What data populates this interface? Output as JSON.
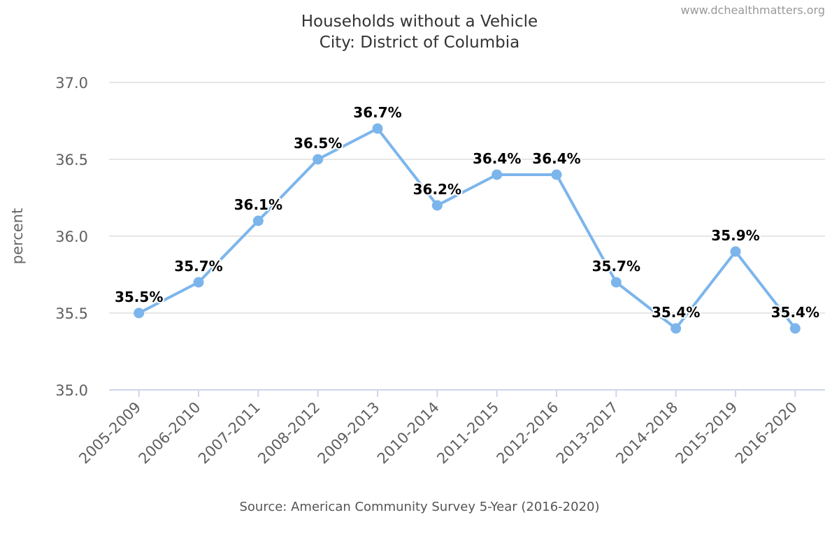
{
  "header": {
    "title": "Households without a Vehicle",
    "subtitle": "City: District of Columbia",
    "credit": "www.dchealthmatters.org"
  },
  "footer": {
    "source": "Source: American Community Survey 5-Year (2016-2020)"
  },
  "colors": {
    "series": "#7cb5ec"
  },
  "chart_data": {
    "type": "line",
    "title": "Households without a Vehicle",
    "subtitle": "City: District of Columbia",
    "xlabel": "",
    "ylabel": "percent",
    "ylim": [
      35.0,
      37.0
    ],
    "yticks": [
      "35.0",
      "35.5",
      "36.0",
      "36.5",
      "37.0"
    ],
    "grid": true,
    "legend": "none",
    "categories": [
      "2005-2009",
      "2006-2010",
      "2007-2011",
      "2008-2012",
      "2009-2013",
      "2010-2014",
      "2011-2015",
      "2012-2016",
      "2013-2017",
      "2014-2018",
      "2015-2019",
      "2016-2020"
    ],
    "series": [
      {
        "values": [
          35.5,
          35.7,
          36.1,
          36.5,
          36.7,
          36.2,
          36.4,
          36.4,
          35.7,
          35.4,
          35.9,
          35.4
        ],
        "labels": [
          "35.5%",
          "35.7%",
          "36.1%",
          "36.5%",
          "36.7%",
          "36.2%",
          "36.4%",
          "36.4%",
          "35.7%",
          "35.4%",
          "35.9%",
          "35.4%"
        ]
      }
    ]
  }
}
